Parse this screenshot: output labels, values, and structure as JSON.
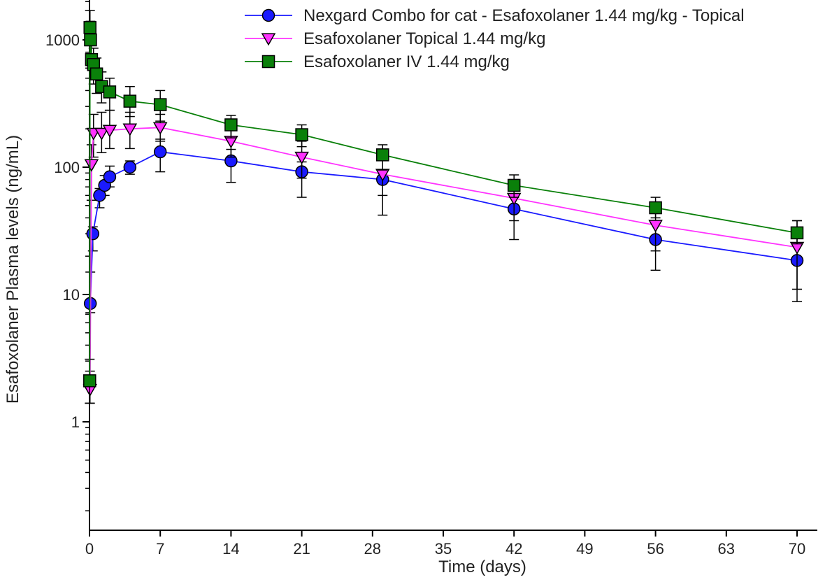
{
  "chart_data": {
    "type": "line",
    "title": "",
    "xlabel": "Time (days)",
    "ylabel": "Esafoxolaner Plasma levels (ng/mL)",
    "xlim": [
      0,
      72
    ],
    "ylim": [
      0.1,
      2000
    ],
    "y_scale": "log",
    "x_ticks": [
      0,
      7,
      14,
      21,
      28,
      35,
      42,
      49,
      56,
      63,
      70
    ],
    "y_major_ticks": [
      1,
      10,
      100,
      1000
    ],
    "y_major_tick_labels": [
      "1",
      "10",
      "100",
      "1000"
    ],
    "grid": false,
    "legend_position": "top-right",
    "series": [
      {
        "name": "Nexgard Combo for cat - Esafoxolaner 1.44 mg/kg - Topical",
        "color": "#1a1aff",
        "marker": "circle",
        "x": [
          0.08,
          0.33,
          1,
          1.5,
          2,
          4,
          7,
          14,
          21,
          29,
          42,
          56,
          70
        ],
        "y": [
          8.5,
          30,
          60,
          72,
          84,
          100,
          132,
          112,
          92,
          80,
          47,
          27,
          18.5
        ],
        "err_low": [
          7.2,
          22,
          48,
          60,
          70,
          88,
          92,
          76,
          58,
          42,
          27,
          15.5,
          8.8
        ],
        "err_high": [
          15,
          34,
          68,
          86,
          102,
          112,
          166,
          138,
          110,
          95,
          58,
          36,
          25
        ]
      },
      {
        "name": "Esafoxolaner Topical  1.44 mg/kg",
        "color": "#ff33ff",
        "marker": "triangle-down",
        "x": [
          0.05,
          0.2,
          0.4,
          1.2,
          2,
          4,
          7,
          14,
          21,
          29,
          42,
          56,
          70
        ],
        "y": [
          1.8,
          105,
          185,
          185,
          195,
          200,
          205,
          160,
          120,
          88,
          57,
          35,
          23.5
        ],
        "err_low": [
          1.4,
          55,
          120,
          130,
          140,
          140,
          160,
          120,
          82,
          60,
          38,
          22,
          11
        ],
        "err_high": [
          2.5,
          150,
          260,
          270,
          280,
          270,
          260,
          210,
          160,
          115,
          80,
          50,
          38
        ]
      },
      {
        "name": "Esafoxolaner IV 1.44 mg/kg",
        "color": "#0a800a",
        "marker": "square",
        "x": [
          0.02,
          0.05,
          0.1,
          0.2,
          0.4,
          0.7,
          1.2,
          2,
          4,
          7,
          14,
          21,
          29,
          42,
          56,
          70
        ],
        "y": [
          2.1,
          1250,
          1000,
          700,
          640,
          540,
          430,
          390,
          330,
          310,
          215,
          180,
          125,
          72,
          48,
          30.5
        ],
        "err_low": [
          1.4,
          1000,
          700,
          500,
          450,
          380,
          320,
          280,
          250,
          230,
          170,
          145,
          95,
          58,
          40,
          25
        ],
        "err_high": [
          3.1,
          1700,
          1400,
          1000,
          860,
          720,
          560,
          500,
          430,
          400,
          255,
          215,
          150,
          87,
          58,
          38
        ]
      }
    ]
  }
}
